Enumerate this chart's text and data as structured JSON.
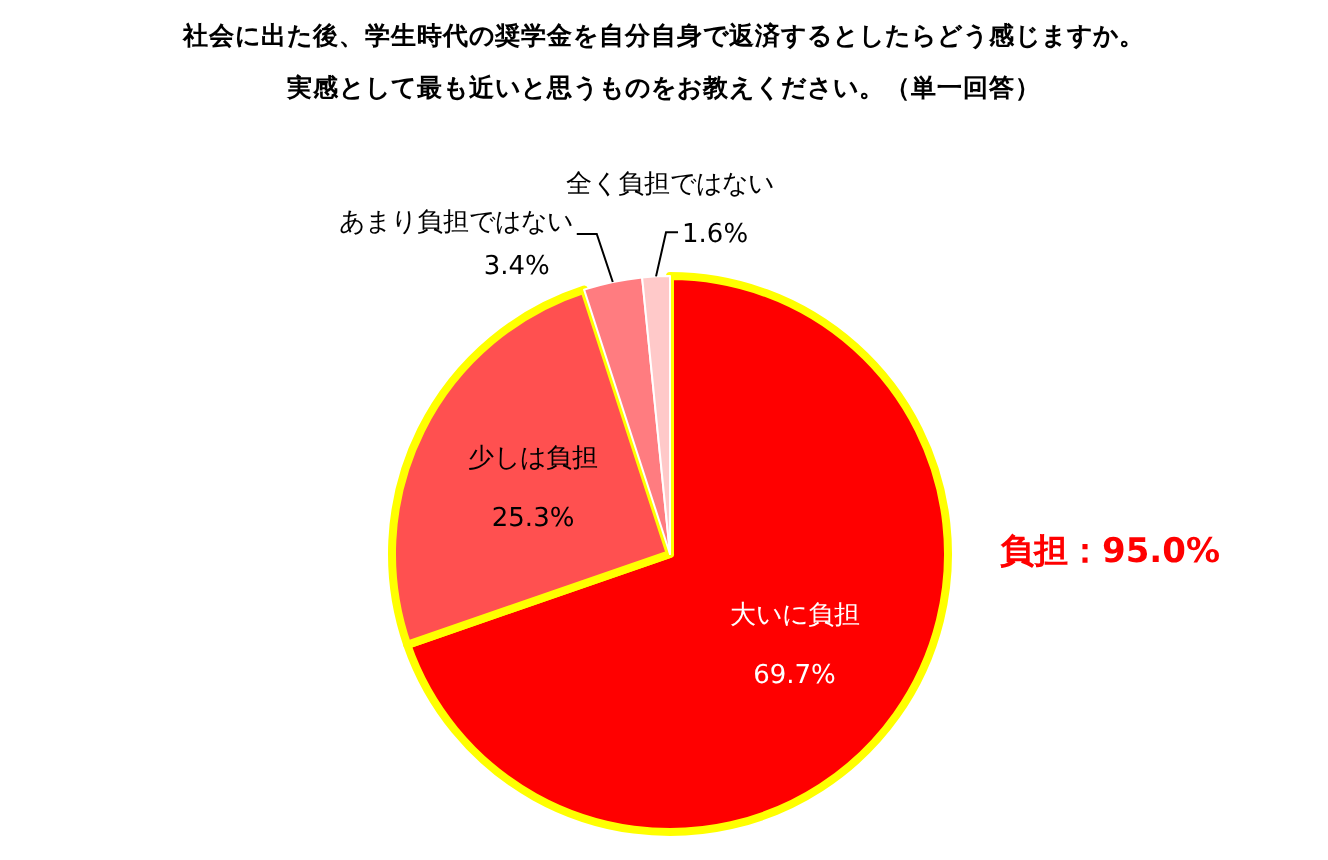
{
  "chart_data": {
    "type": "pie",
    "title": "社会に出た後、学生時代の奨学金を自分自身で返済するとしたらどう感じますか。",
    "subtitle": "実感として最も近いと思うものをお教えください。（単一回答）",
    "categories": [
      "大いに負担",
      "少しは負担",
      "あまり負担ではない",
      "全く負担ではない"
    ],
    "values": [
      69.7,
      25.3,
      3.4,
      1.6
    ],
    "colors": [
      "#ff0000",
      "#ff5050",
      "#ff7c80",
      "#ffc9c9"
    ],
    "value_labels": [
      "69.7%",
      "25.3%",
      "3.4%",
      "1.6%"
    ],
    "annotations": [
      "負担：95.0%"
    ]
  }
}
